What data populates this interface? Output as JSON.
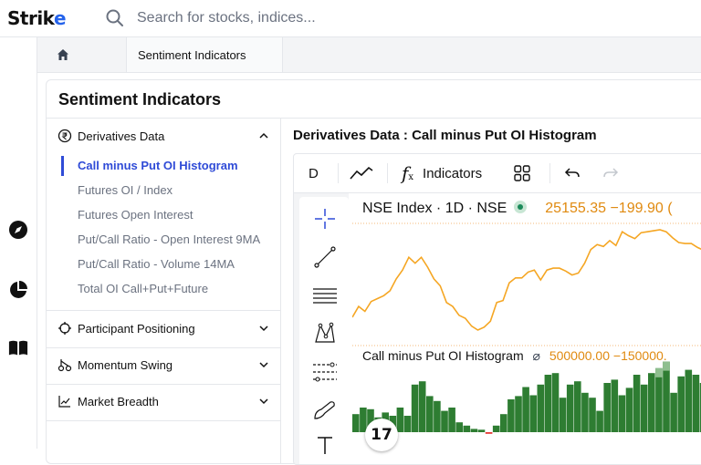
{
  "app": {
    "logo_main": "Strik",
    "logo_accent": "e"
  },
  "search": {
    "placeholder": "Search for stocks, indices..."
  },
  "tabs": [
    {
      "label": "Sentiment Indicators"
    }
  ],
  "panel": {
    "title": "Sentiment Indicators"
  },
  "sidebar": {
    "sections": [
      {
        "label": "Derivatives Data",
        "icon": "rupee-coin-icon",
        "expanded": true,
        "items": [
          {
            "label": "Call minus Put OI Histogram",
            "active": true
          },
          {
            "label": "Futures OI / Index",
            "active": false
          },
          {
            "label": "Futures Open Interest",
            "active": false
          },
          {
            "label": "Put/Call Ratio - Open Interest 9MA",
            "active": false
          },
          {
            "label": "Put/Call Ratio - Volume 14MA",
            "active": false
          },
          {
            "label": "Total OI Call+Put+Future",
            "active": false
          }
        ]
      },
      {
        "label": "Participant Positioning",
        "icon": "crosshair-icon",
        "expanded": false
      },
      {
        "label": "Momentum Swing",
        "icon": "swing-icon",
        "expanded": false
      },
      {
        "label": "Market Breadth",
        "icon": "line-chart-icon",
        "expanded": false
      }
    ]
  },
  "main": {
    "title": "Derivatives Data : Call minus Put OI Histogram"
  },
  "chart_toolbar": {
    "interval": "D",
    "indicators_label": "Indicators"
  },
  "chart": {
    "price_legend": "NSE Index · 1D · NSE",
    "price_values": "25155.35 −199.90 (",
    "hist_legend": "Call minus Put OI Histogram",
    "hist_values": "500000.00 −150000.",
    "logo": "17",
    "colors": {
      "line": "#f5a623",
      "bars": "#2e7d32",
      "bars_light": "#8fbf8f",
      "negative": "#e53935",
      "active": "#2f4bd7"
    }
  },
  "chart_data": {
    "type": "line",
    "price_series": [
      25,
      36,
      31,
      41,
      44,
      47,
      52,
      64,
      73,
      86,
      80,
      86,
      76,
      64,
      57,
      40,
      36,
      27,
      24,
      16,
      12,
      15,
      21,
      40,
      42,
      60,
      65,
      65,
      71,
      73,
      63,
      73,
      75,
      75,
      72,
      68,
      70,
      80,
      94,
      99,
      97,
      103,
      98,
      112,
      108,
      105,
      111,
      112,
      113,
      114,
      112,
      106,
      101,
      100,
      100,
      96,
      93,
      91
    ],
    "histogram": [
      22,
      30,
      28,
      18,
      24,
      20,
      30,
      20,
      58,
      62,
      44,
      38,
      26,
      30,
      12,
      8,
      4,
      3,
      -2,
      8,
      22,
      40,
      44,
      55,
      45,
      58,
      70,
      72,
      42,
      58,
      62,
      48,
      42,
      26,
      60,
      64,
      45,
      54,
      70,
      58,
      72,
      78,
      86,
      48,
      68,
      76,
      70,
      60,
      50,
      58,
      40,
      42,
      52,
      60,
      62
    ],
    "highlighted_bars": [
      41,
      42
    ]
  }
}
